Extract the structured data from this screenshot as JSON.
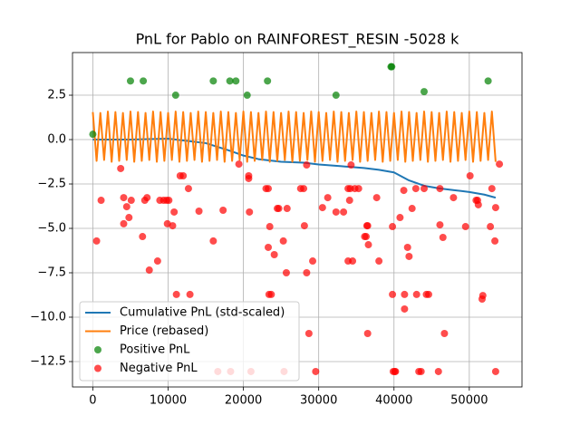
{
  "chart_data": {
    "type": "line",
    "title": "PnL for Pablo on RAINFOREST_RESIN -5028 k",
    "xlim": [
      -2700,
      57000
    ],
    "ylim": [
      -13.93,
      4.9
    ],
    "xticks": [
      0,
      10000,
      20000,
      30000,
      40000,
      50000
    ],
    "yticks": [
      2.5,
      {
        "value": 0,
        "label": "0.0"
      },
      {
        "value": -2.5,
        "label": "−2.5"
      },
      {
        "value": -5,
        "label": "−5.0"
      },
      {
        "value": -7.5,
        "label": "−7.5"
      },
      {
        "value": -10,
        "label": "−10.0"
      },
      {
        "value": -12.5,
        "label": "−12.5"
      }
    ],
    "grid": true,
    "legend": "lower left",
    "series": [
      {
        "name": "Cumulative PnL (std-scaled)",
        "color": "#1f77b4",
        "kind": "line",
        "x": [
          0,
          5000,
          10000,
          15000,
          18000,
          20000,
          22000,
          25000,
          28000,
          30000,
          33000,
          36000,
          38000,
          40000,
          42000,
          44000,
          46000,
          48000,
          50000,
          52000,
          53500
        ],
        "values": [
          0,
          0,
          0.05,
          -0.2,
          -0.6,
          -0.9,
          -1.1,
          -1.25,
          -1.3,
          -1.4,
          -1.5,
          -1.6,
          -1.7,
          -1.85,
          -2.3,
          -2.6,
          -2.75,
          -2.85,
          -2.95,
          -3.1,
          -3.27
        ]
      },
      {
        "name": "Price (rebased)",
        "color": "#ff7f0e",
        "kind": "line",
        "x": [
          0,
          500,
          1000,
          1500,
          2000,
          2500,
          3000,
          3500,
          4000,
          4500,
          5000,
          5500,
          6000,
          6500,
          7000,
          7500,
          8000,
          8500,
          9000,
          9500,
          10000,
          10500,
          11000,
          11500,
          12000,
          12500,
          13000,
          13500,
          14000,
          14500,
          15000,
          15500,
          16000,
          16500,
          17000,
          17500,
          18000,
          18500,
          19000,
          19500,
          20000,
          20500,
          21000,
          21500,
          22000,
          22500,
          23000,
          23500,
          24000,
          24500,
          25000,
          25500,
          26000,
          26500,
          27000,
          27500,
          28000,
          28500,
          29000,
          29500,
          30000,
          30500,
          31000,
          31500,
          32000,
          32500,
          33000,
          33500,
          34000,
          34500,
          35000,
          35500,
          36000,
          36500,
          37000,
          37500,
          38000,
          38500,
          39000,
          39500,
          40000,
          40500,
          41000,
          41500,
          42000,
          42500,
          43000,
          43500,
          44000,
          44500,
          45000,
          45500,
          46000,
          46500,
          47000,
          47500,
          48000,
          48500,
          49000,
          49500,
          50000,
          50500,
          51000,
          51500,
          52000,
          52500,
          53000,
          53500
        ],
        "values": [
          1.55,
          -1.2,
          1.5,
          -1.15,
          1.58,
          -1.25,
          1.55,
          -1.2,
          1.5,
          -1.15,
          1.58,
          -1.25,
          1.55,
          -1.2,
          1.5,
          -1.15,
          1.58,
          -1.25,
          1.55,
          -1.2,
          1.5,
          -1.15,
          1.58,
          -1.25,
          1.55,
          -1.2,
          1.5,
          -1.15,
          1.58,
          -1.25,
          1.55,
          -1.2,
          1.5,
          -1.15,
          1.58,
          -1.25,
          1.55,
          -1.2,
          1.5,
          -1.15,
          1.58,
          -1.25,
          1.55,
          -1.2,
          1.5,
          -1.15,
          1.58,
          -1.25,
          1.55,
          -1.2,
          1.5,
          -1.15,
          1.58,
          -1.25,
          1.55,
          -1.2,
          1.5,
          -1.15,
          1.58,
          -1.25,
          1.55,
          -1.2,
          1.5,
          -1.15,
          1.58,
          -1.25,
          1.55,
          -1.2,
          1.5,
          -1.15,
          1.58,
          -1.25,
          1.55,
          -1.2,
          1.5,
          -1.15,
          1.58,
          -1.25,
          1.55,
          -1.2,
          1.5,
          -1.15,
          1.58,
          -1.25,
          1.55,
          -1.2,
          1.5,
          -1.15,
          1.58,
          -1.25,
          1.55,
          -1.2,
          1.5,
          -1.15,
          1.58,
          -1.25,
          1.55,
          -1.2,
          1.5,
          -1.15,
          1.58,
          -1.25,
          1.55,
          -1.2,
          1.5,
          -1.15,
          1.58,
          -1.25
        ]
      },
      {
        "name": "Positive PnL",
        "color": "#008000",
        "kind": "scatter",
        "x": [
          0,
          5000,
          6700,
          11000,
          16000,
          18200,
          19000,
          20500,
          23200,
          32300,
          39600,
          39700,
          44000,
          52500
        ],
        "values": [
          0.3,
          3.3,
          3.3,
          2.5,
          3.3,
          3.3,
          3.3,
          2.5,
          3.3,
          2.5,
          4.1,
          4.1,
          2.7,
          3.3
        ]
      },
      {
        "name": "Negative PnL",
        "color": "#ff0000",
        "kind": "scatter",
        "x": [
          500,
          1100,
          3700,
          4100,
          4100,
          4500,
          4800,
          5100,
          6600,
          6900,
          7200,
          7500,
          8600,
          8900,
          9400,
          9800,
          9900,
          10100,
          10600,
          10800,
          11100,
          11600,
          12000,
          12700,
          12900,
          14100,
          16000,
          16600,
          17300,
          18300,
          19400,
          20700,
          20700,
          20800,
          21000,
          23000,
          23300,
          23300,
          23400,
          23500,
          23700,
          24100,
          24500,
          24700,
          25300,
          25400,
          25700,
          25800,
          27600,
          28000,
          28100,
          28400,
          28400,
          28700,
          29200,
          29600,
          30500,
          31200,
          32300,
          33300,
          33900,
          33900,
          34100,
          34200,
          34500,
          34800,
          34300,
          35300,
          36100,
          36300,
          36400,
          36500,
          36600,
          36500,
          37700,
          38000,
          39800,
          39800,
          39900,
          40100,
          40200,
          40800,
          41300,
          41400,
          41400,
          41800,
          42000,
          42400,
          42900,
          43000,
          43300,
          43600,
          44000,
          44300,
          44600,
          45900,
          46100,
          46100,
          46500,
          46700,
          47900,
          49500,
          50100,
          50900,
          51100,
          51200,
          51700,
          51800,
          52800,
          53000,
          53400,
          53500,
          53500,
          54000
        ],
        "values": [
          -5.71,
          -3.42,
          -1.63,
          -3.27,
          -4.74,
          -3.78,
          -4.39,
          -3.42,
          -5.46,
          -3.42,
          -3.27,
          -7.35,
          -6.84,
          -3.42,
          -3.42,
          -3.42,
          -4.74,
          -3.42,
          -4.85,
          -4.08,
          -8.72,
          -2.04,
          -2.04,
          -2.76,
          -8.72,
          -4.03,
          -5.71,
          -13.06,
          -3.98,
          -13.06,
          -1.38,
          -2.04,
          -2.19,
          -4.08,
          -13.06,
          -2.76,
          -6.07,
          -2.76,
          -8.72,
          -4.9,
          -8.72,
          -6.48,
          -3.88,
          -3.88,
          -5.71,
          -13.06,
          -7.5,
          -3.88,
          -2.76,
          -2.76,
          -4.85,
          -7.5,
          -1.43,
          -10.92,
          -6.84,
          -13.06,
          -3.83,
          -3.27,
          -4.08,
          -4.08,
          -2.76,
          -6.84,
          -3.42,
          -2.76,
          -6.84,
          -2.76,
          -1.43,
          -2.76,
          -5.46,
          -5.46,
          -4.85,
          -4.85,
          -5.92,
          -10.92,
          -3.27,
          -6.84,
          -4.9,
          -8.72,
          -13.06,
          -13.06,
          -13.06,
          -4.39,
          -2.86,
          -8.72,
          -9.54,
          -6.07,
          -6.58,
          -3.88,
          -2.76,
          -8.72,
          -13.06,
          -13.06,
          -2.76,
          -8.72,
          -8.72,
          -13.06,
          -4.8,
          -2.76,
          -5.51,
          -10.92,
          -3.27,
          -4.9,
          -2.04,
          -3.42,
          -3.42,
          -3.67,
          -8.98,
          -8.78,
          -4.9,
          -2.76,
          -5.71,
          -3.83,
          -13.06,
          -1.38
        ]
      }
    ]
  }
}
